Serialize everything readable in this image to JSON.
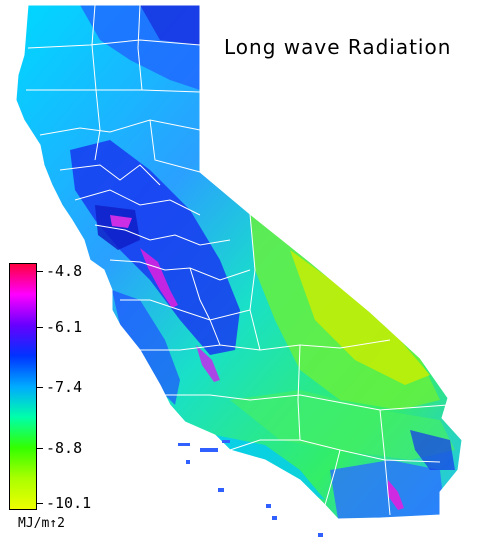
{
  "map": {
    "title": "Long wave Radiation",
    "region": "California",
    "units": "MJ/m↑2",
    "legend": {
      "type": "continuous-colorbar",
      "min": -10.1,
      "max": -4.8,
      "tick_labels": [
        "-4.8",
        "-6.1",
        "-7.4",
        "-8.8",
        "-10.1"
      ],
      "colors": [
        "#ff0040",
        "#ff00ff",
        "#6600ff",
        "#0033ff",
        "#00aaff",
        "#00ffaa",
        "#33ff00",
        "#aaff00",
        "#eeff00"
      ]
    },
    "palette": {
      "low": "#d4f000",
      "mid_low": "#5cf040",
      "mid": "#20e0c0",
      "mid_high": "#2aa0ff",
      "high": "#1e3cf0",
      "peak": "#e020e0",
      "boundary_line": "#ffffff"
    }
  }
}
